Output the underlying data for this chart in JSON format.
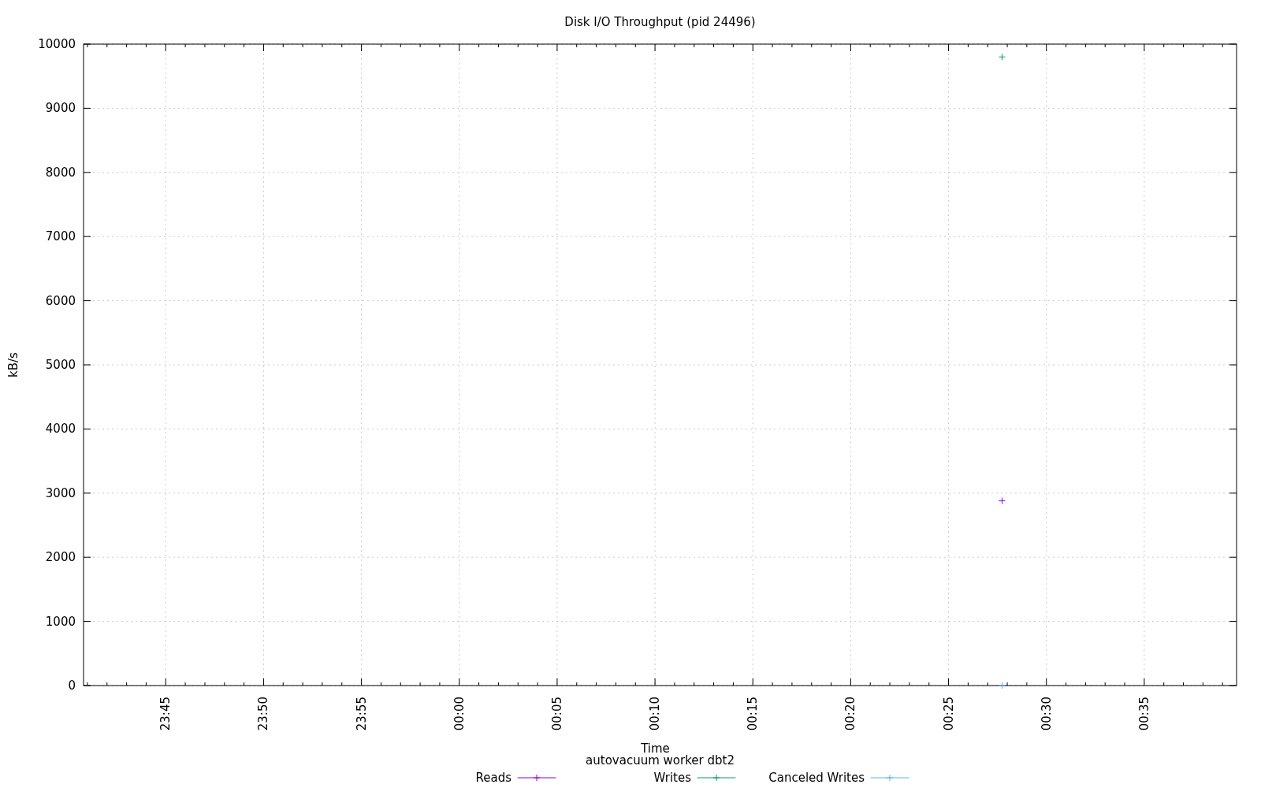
{
  "chart_data": {
    "type": "scatter",
    "title": "Disk I/O Throughput (pid 24496)",
    "xlabel": "Time",
    "ylabel": "kB/s",
    "annotations": [
      "autovacuum worker dbt2"
    ],
    "xlim": [
      "2000-01-01T23:40:48",
      "2000-01-02T00:39:43"
    ],
    "xticks": [
      {
        "value": "2000-01-01T23:45",
        "label": "23:45"
      },
      {
        "value": "2000-01-01T23:50",
        "label": "23:50"
      },
      {
        "value": "2000-01-01T23:55",
        "label": "23:55"
      },
      {
        "value": "2000-01-02T00:00",
        "label": "00:00"
      },
      {
        "value": "2000-01-02T00:05",
        "label": "00:05"
      },
      {
        "value": "2000-01-02T00:10",
        "label": "00:10"
      },
      {
        "value": "2000-01-02T00:15",
        "label": "00:15"
      },
      {
        "value": "2000-01-02T00:20",
        "label": "00:20"
      },
      {
        "value": "2000-01-02T00:25",
        "label": "00:25"
      },
      {
        "value": "2000-01-02T00:30",
        "label": "00:30"
      },
      {
        "value": "2000-01-02T00:35",
        "label": "00:35"
      }
    ],
    "ylim": [
      0,
      10000
    ],
    "yticks": [
      0,
      1000,
      2000,
      3000,
      4000,
      5000,
      6000,
      7000,
      8000,
      9000,
      10000
    ],
    "grid": true,
    "legend": "bottom",
    "line_style": "solid",
    "series": [
      {
        "name": "Reads",
        "color": "#9400d3",
        "marker": "cross",
        "x": [
          "2000-01-02T00:27:44"
        ],
        "values": [
          2880
        ]
      },
      {
        "name": "Writes",
        "color": "#009e73",
        "marker": "cross",
        "x": [
          "2000-01-02T00:27:44"
        ],
        "values": [
          9800
        ]
      },
      {
        "name": "Canceled Writes",
        "color": "#56b4e9",
        "marker": "cross",
        "x": [
          "2000-01-02T00:27:44"
        ],
        "values": [
          0
        ]
      }
    ]
  }
}
